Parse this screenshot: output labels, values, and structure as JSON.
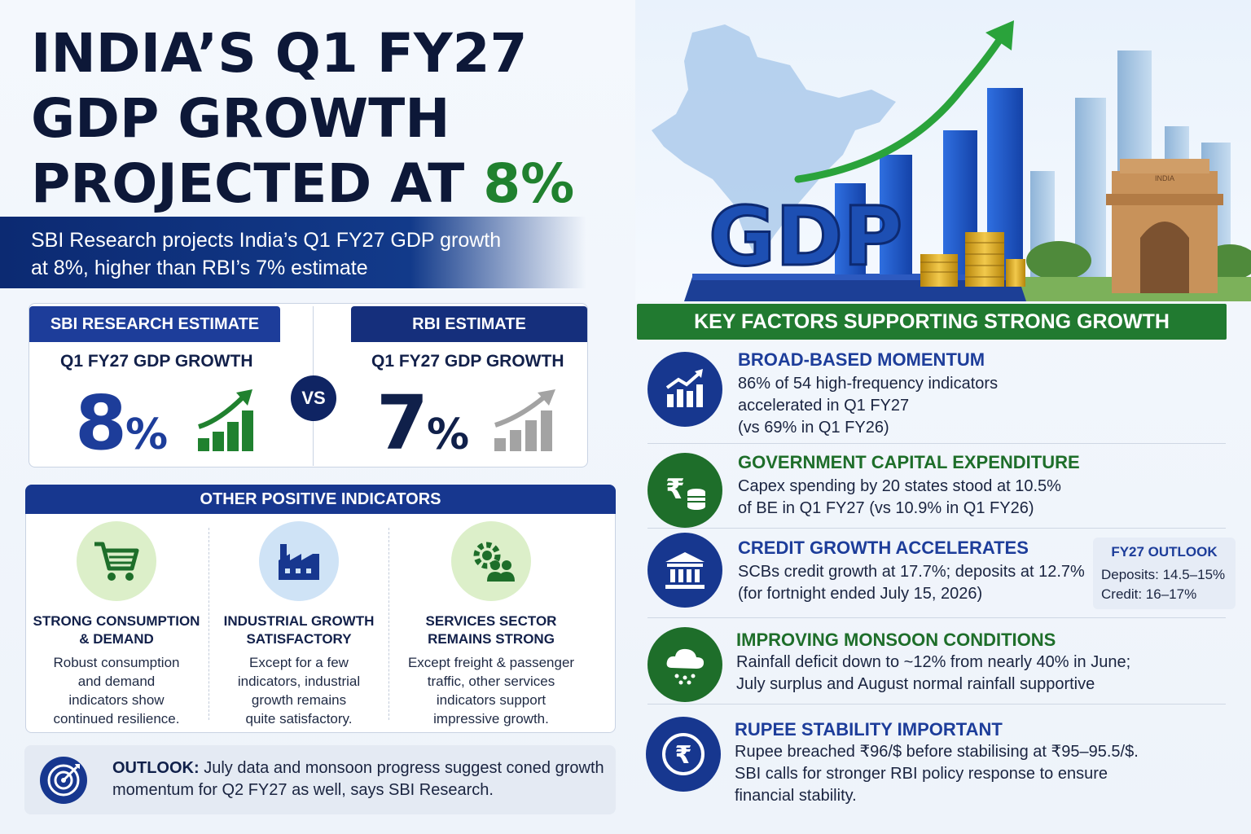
{
  "title": {
    "line1": "INDIA’S Q1 FY27",
    "line2": "GDP GROWTH",
    "line3_prefix": "PROJECTED AT ",
    "line3_highlight": "8%"
  },
  "subtitle": {
    "line1": "SBI Research projects India’s Q1 FY27 GDP growth",
    "line2": "at 8%, higher than RBI’s 7% estimate"
  },
  "hero": {
    "sign_text": "GDP",
    "gate_label": "INDIA"
  },
  "estimates": {
    "sbi": {
      "tag": "SBI RESEARCH ESTIMATE",
      "subtitle": "Q1 FY27 GDP GROWTH",
      "value": "8",
      "unit": "%"
    },
    "vs": "VS",
    "rbi": {
      "tag": "RBI ESTIMATE",
      "subtitle": "Q1 FY27 GDP GROWTH",
      "value": "7",
      "unit": "%"
    }
  },
  "other_indicators": {
    "heading": "OTHER POSITIVE INDICATORS",
    "items": [
      {
        "title1": "STRONG CONSUMPTION",
        "title2": "& DEMAND",
        "text": [
          "Robust consumption",
          "and demand",
          "indicators show",
          "continued resilience."
        ]
      },
      {
        "title1": "INDUSTRIAL GROWTH",
        "title2": "SATISFACTORY",
        "text": [
          "Except for a few",
          "indicators, industrial",
          "growth remains",
          "quite satisfactory."
        ]
      },
      {
        "title1": "SERVICES SECTOR",
        "title2": "REMAINS STRONG",
        "text": [
          "Except freight & passenger",
          "traffic, other services",
          "indicators support",
          "impressive growth."
        ]
      }
    ]
  },
  "outlook": {
    "label": "OUTLOOK:",
    "line1": " July data and monsoon progress suggest coned growth",
    "line2": "momentum for Q2 FY27 as well, says SBI Research."
  },
  "key_factors": {
    "heading": "KEY FACTORS SUPPORTING STRONG GROWTH",
    "items": [
      {
        "title": "BROAD-BASED MOMENTUM",
        "lines": [
          "86% of 54 high-frequency indicators",
          "accelerated in Q1 FY27",
          "(vs 69% in Q1 FY26)"
        ]
      },
      {
        "title": "GOVERNMENT CAPITAL EXPENDITURE",
        "lines": [
          "Capex spending by 20 states stood at 10.5%",
          "of BE in Q1 FY27 (vs 10.9% in Q1 FY26)"
        ]
      },
      {
        "title": "CREDIT GROWTH ACCELERATES",
        "lines": [
          "SCBs credit growth at 17.7%; deposits at 12.7%",
          "(for fortnight ended July 15, 2026)"
        ]
      },
      {
        "title": "IMPROVING MONSOON CONDITIONS",
        "lines": [
          "Rainfall deficit down to ~12% from nearly 40% in June;",
          "July surplus and August normal rainfall supportive"
        ]
      },
      {
        "title": "RUPEE STABILITY IMPORTANT",
        "lines": [
          "Rupee breached ₹96/$ before stabilising at ₹95–95.5/$.",
          "SBI calls for stronger RBI policy response to ensure",
          "financial stability."
        ]
      }
    ],
    "fy27_outlook": {
      "title": "FY27 OUTLOOK",
      "deposits": "Deposits: 14.5–15%",
      "credit": "Credit: 16–17%"
    }
  },
  "colors": {
    "navy": "#0f2463",
    "blue": "#1d3d9a",
    "green": "#20812f",
    "dark_text": "#0d1838",
    "grey_bar": "#a3a3a3"
  },
  "icons": {
    "sbi_growth": "bar-chart-up-green-icon",
    "rbi_growth": "bar-chart-up-grey-icon",
    "consumption": "shopping-cart-icon",
    "industrial": "factory-icon",
    "services": "gear-people-icon",
    "outlook": "target-icon",
    "momentum": "bar-chart-trend-icon",
    "capex": "rupee-coins-icon",
    "credit": "bank-icon",
    "monsoon": "rain-cloud-icon",
    "rupee": "rupee-circle-icon"
  }
}
